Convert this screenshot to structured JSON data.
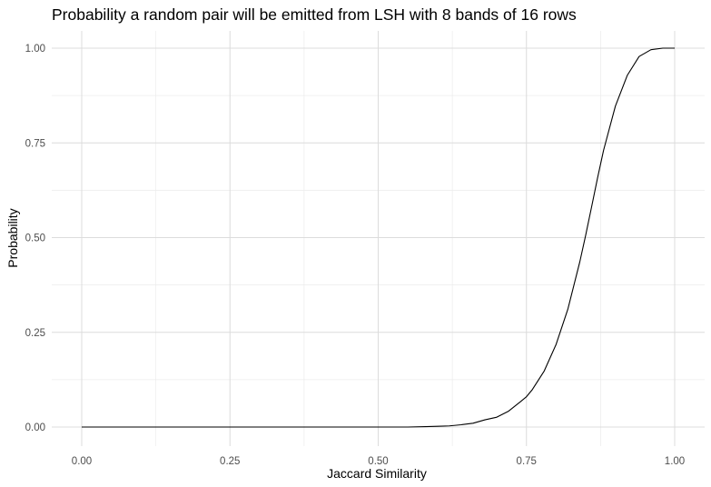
{
  "chart_data": {
    "type": "line",
    "title": "Probability a random pair will be emitted from LSH with 8 bands of 16 rows",
    "xlabel": "Jaccard Similarity",
    "ylabel": "Probability",
    "xlim": [
      0,
      1
    ],
    "ylim": [
      0,
      1
    ],
    "x_ticks": [
      "0.00",
      "0.25",
      "0.50",
      "0.75",
      "1.00"
    ],
    "y_ticks": [
      "0.00",
      "0.25",
      "0.50",
      "0.75",
      "1.00"
    ],
    "grid": true,
    "legend": "none",
    "line_color": "#000000",
    "series": [
      {
        "x": [
          0.0,
          0.05,
          0.1,
          0.15,
          0.2,
          0.25,
          0.3,
          0.35,
          0.4,
          0.45,
          0.5,
          0.55,
          0.58,
          0.6,
          0.62,
          0.64,
          0.66,
          0.68,
          0.7,
          0.72,
          0.74,
          0.75,
          0.76,
          0.78,
          0.8,
          0.82,
          0.84,
          0.85,
          0.86,
          0.87,
          0.88,
          0.9,
          0.92,
          0.94,
          0.96,
          0.98,
          1.0
        ],
        "y": [
          0.0,
          0.0,
          0.0,
          0.0,
          0.0,
          0.0,
          0.0,
          0.0,
          0.0,
          0.0,
          0.0,
          0.0,
          0.001,
          0.002,
          0.003,
          0.006,
          0.01,
          0.019,
          0.026,
          0.042,
          0.067,
          0.08,
          0.099,
          0.148,
          0.218,
          0.312,
          0.436,
          0.507,
          0.582,
          0.658,
          0.73,
          0.847,
          0.928,
          0.978,
          0.996,
          1.0,
          1.0
        ]
      }
    ]
  }
}
